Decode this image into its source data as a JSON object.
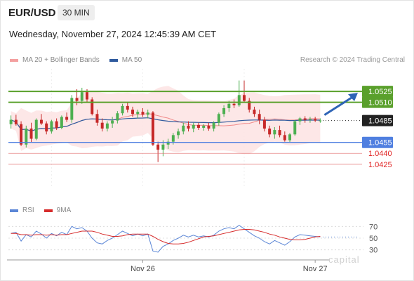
{
  "header": {
    "symbol": "EUR/USD",
    "timeframe": "30 MIN",
    "datetime": "Wednesday, November 27, 2024 12:45:39 AM CET"
  },
  "legend": {
    "items": [
      {
        "label": "MA 20 + Bollinger Bands",
        "color": "#f4a0a0"
      },
      {
        "label": "MA 50",
        "color": "#2f5a9e"
      }
    ],
    "copyright": "Research © 2024 Trading Central"
  },
  "rsi_legend": {
    "items": [
      {
        "label": "RSI",
        "color": "#5b86d6"
      },
      {
        "label": "9MA",
        "color": "#d62b2b"
      }
    ]
  },
  "watermark": "capital",
  "colors": {
    "green": "#5aa02c",
    "blue": "#4f7fe0",
    "red": "#e06a6a",
    "bull": "#4caf50",
    "bear": "#c62828",
    "arrow": "#2e64b6",
    "band": "#fde3e3",
    "ma20": "#f08a8a",
    "ma50": "#2f5a9e"
  },
  "chart_data": {
    "type": "candlestick",
    "x_ticks": [
      "Nov 26",
      "Nov 27"
    ],
    "price_levels": [
      {
        "value": 1.0525,
        "label": "1.0525",
        "kind": "resistance"
      },
      {
        "value": 1.051,
        "label": "1.0510",
        "kind": "resistance"
      },
      {
        "value": 1.0485,
        "label": "1.0485",
        "kind": "current"
      },
      {
        "value": 1.0455,
        "label": "1.0455",
        "kind": "pivot"
      },
      {
        "value": 1.044,
        "label": "1.0440",
        "kind": "support"
      },
      {
        "value": 1.0425,
        "label": "1.0425",
        "kind": "support"
      }
    ],
    "ylim": [
      1.0392,
      1.0556
    ],
    "candles": [
      [
        1.048,
        1.0492,
        1.0474,
        1.0486
      ],
      [
        1.0486,
        1.0493,
        1.0478,
        1.048
      ],
      [
        1.048,
        1.0484,
        1.045,
        1.0452
      ],
      [
        1.0452,
        1.0478,
        1.0448,
        1.0474
      ],
      [
        1.0474,
        1.0482,
        1.0455,
        1.046
      ],
      [
        1.046,
        1.0488,
        1.0458,
        1.0486
      ],
      [
        1.0486,
        1.0494,
        1.0479,
        1.0481
      ],
      [
        1.0481,
        1.0484,
        1.0466,
        1.047
      ],
      [
        1.047,
        1.0486,
        1.0467,
        1.0484
      ],
      [
        1.0484,
        1.0488,
        1.0472,
        1.0475
      ],
      [
        1.0475,
        1.0492,
        1.0473,
        1.049
      ],
      [
        1.049,
        1.0496,
        1.0483,
        1.0486
      ],
      [
        1.0486,
        1.052,
        1.0482,
        1.0516
      ],
      [
        1.0516,
        1.0528,
        1.0506,
        1.0512
      ],
      [
        1.0512,
        1.053,
        1.0508,
        1.0524
      ],
      [
        1.0524,
        1.0528,
        1.051,
        1.0514
      ],
      [
        1.0514,
        1.0517,
        1.0492,
        1.0494
      ],
      [
        1.0494,
        1.05,
        1.0478,
        1.0482
      ],
      [
        1.0482,
        1.0488,
        1.047,
        1.0474
      ],
      [
        1.0474,
        1.0484,
        1.047,
        1.0481
      ],
      [
        1.0481,
        1.049,
        1.0475,
        1.0485
      ],
      [
        1.0485,
        1.0498,
        1.0481,
        1.0495
      ],
      [
        1.0495,
        1.0508,
        1.0492,
        1.0505
      ],
      [
        1.0505,
        1.051,
        1.0496,
        1.05
      ],
      [
        1.05,
        1.0504,
        1.049,
        1.0494
      ],
      [
        1.0494,
        1.05,
        1.0488,
        1.0497
      ],
      [
        1.0497,
        1.0502,
        1.049,
        1.0493
      ],
      [
        1.0493,
        1.05,
        1.0488,
        1.0496
      ],
      [
        1.0496,
        1.0498,
        1.045,
        1.0452
      ],
      [
        1.0452,
        1.0456,
        1.0428,
        1.0445
      ],
      [
        1.0445,
        1.0458,
        1.0436,
        1.0452
      ],
      [
        1.0452,
        1.046,
        1.0446,
        1.0456
      ],
      [
        1.0456,
        1.0468,
        1.0452,
        1.0465
      ],
      [
        1.0465,
        1.0474,
        1.046,
        1.047
      ],
      [
        1.047,
        1.0482,
        1.0466,
        1.0478
      ],
      [
        1.0478,
        1.0484,
        1.047,
        1.0474
      ],
      [
        1.0474,
        1.0482,
        1.0469,
        1.0479
      ],
      [
        1.0479,
        1.0482,
        1.0472,
        1.0475
      ],
      [
        1.0475,
        1.048,
        1.0471,
        1.0478
      ],
      [
        1.0478,
        1.0482,
        1.0471,
        1.0474
      ],
      [
        1.0474,
        1.0484,
        1.047,
        1.0482
      ],
      [
        1.0482,
        1.0496,
        1.0478,
        1.0494
      ],
      [
        1.0494,
        1.0506,
        1.049,
        1.0502
      ],
      [
        1.0502,
        1.0512,
        1.0497,
        1.0508
      ],
      [
        1.0508,
        1.0514,
        1.0502,
        1.0506
      ],
      [
        1.0506,
        1.054,
        1.0504,
        1.052
      ],
      [
        1.052,
        1.054,
        1.051,
        1.0512
      ],
      [
        1.0512,
        1.0516,
        1.0496,
        1.05
      ],
      [
        1.05,
        1.0504,
        1.049,
        1.0494
      ],
      [
        1.0494,
        1.05,
        1.048,
        1.0486
      ],
      [
        1.0486,
        1.049,
        1.047,
        1.0474
      ],
      [
        1.0474,
        1.0478,
        1.0462,
        1.0466
      ],
      [
        1.0466,
        1.0476,
        1.046,
        1.0472
      ],
      [
        1.0472,
        1.0478,
        1.0462,
        1.0465
      ],
      [
        1.0465,
        1.047,
        1.0456,
        1.0458
      ],
      [
        1.0458,
        1.0468,
        1.0455,
        1.0466
      ],
      [
        1.0466,
        1.0486,
        1.0464,
        1.0484
      ],
      [
        1.0484,
        1.049,
        1.0479,
        1.0488
      ],
      [
        1.0488,
        1.0491,
        1.0482,
        1.0486
      ],
      [
        1.0486,
        1.049,
        1.0482,
        1.0487
      ],
      [
        1.0487,
        1.049,
        1.0483,
        1.0485
      ],
      [
        1.0485,
        1.0488,
        1.0482,
        1.0485
      ]
    ],
    "rsi": {
      "ylim": [
        20,
        80
      ],
      "ticks": [
        70,
        50,
        30
      ],
      "rsi": [
        58,
        60,
        45,
        56,
        52,
        62,
        57,
        50,
        58,
        54,
        60,
        56,
        70,
        66,
        68,
        62,
        50,
        42,
        40,
        46,
        50,
        56,
        62,
        58,
        54,
        57,
        54,
        57,
        28,
        26,
        36,
        40,
        46,
        50,
        55,
        52,
        55,
        52,
        54,
        52,
        55,
        62,
        66,
        68,
        66,
        72,
        66,
        60,
        54,
        50,
        44,
        40,
        46,
        42,
        38,
        44,
        52,
        56,
        55,
        54,
        53,
        52
      ],
      "ma9": [
        58,
        58,
        56,
        56,
        55,
        56,
        56,
        55,
        56,
        55,
        56,
        56,
        58,
        60,
        62,
        62,
        62,
        60,
        57,
        55,
        53,
        53,
        54,
        56,
        57,
        57,
        57,
        57,
        53,
        48,
        44,
        41,
        40,
        40,
        41,
        43,
        46,
        49,
        52,
        53,
        54,
        56,
        58,
        60,
        62,
        64,
        65,
        65,
        64,
        62,
        60,
        57,
        55,
        52,
        50,
        48,
        47,
        47,
        48,
        50,
        52,
        53
      ]
    }
  }
}
